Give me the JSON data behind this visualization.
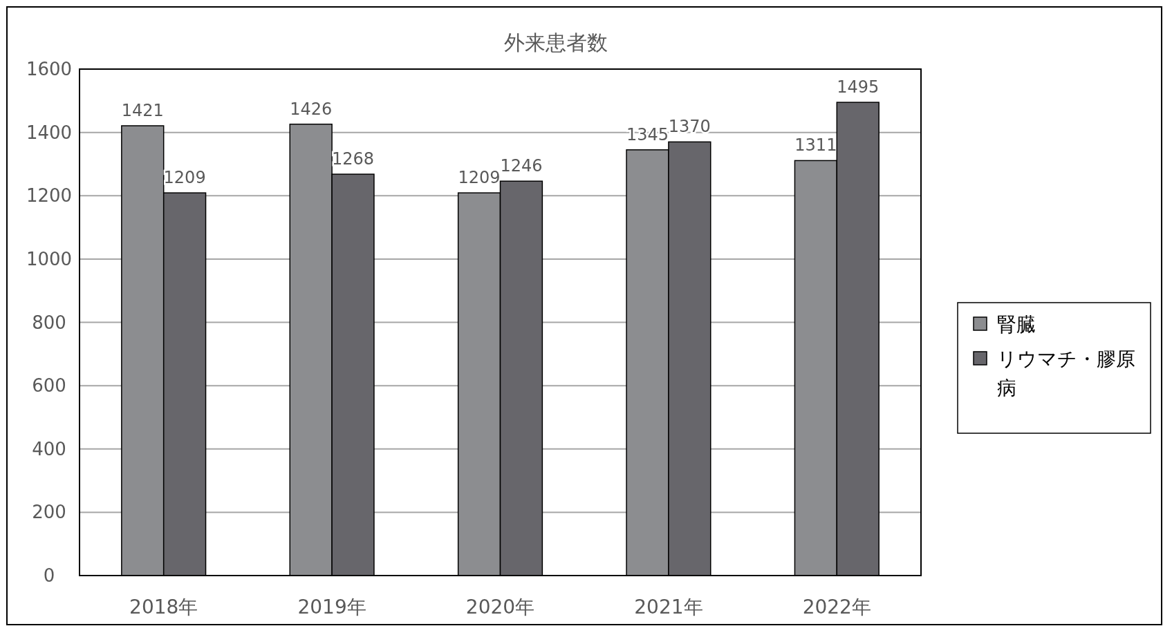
{
  "chart_data": {
    "type": "bar",
    "title": "外来患者数",
    "categories": [
      "2018年",
      "2019年",
      "2020年",
      "2021年",
      "2022年"
    ],
    "series": [
      {
        "name": "腎臓",
        "color": "#8c8d90",
        "values": [
          1421,
          1426,
          1209,
          1345,
          1311
        ]
      },
      {
        "name": "リウマチ・膠原病",
        "color": "#67666b",
        "values": [
          1209,
          1268,
          1246,
          1370,
          1495
        ]
      }
    ],
    "ylim": [
      0,
      1600
    ],
    "yticks": [
      0,
      200,
      400,
      600,
      800,
      1000,
      1200,
      1400,
      1600
    ],
    "grid": "y",
    "legend": "right",
    "data_labels": true
  }
}
